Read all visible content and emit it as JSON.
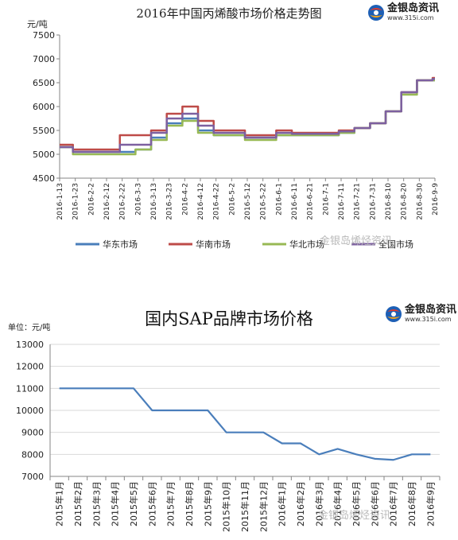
{
  "chart_data": [
    {
      "type": "line",
      "title": "2016年中国丙烯酸市场价格走势图",
      "ylabel": "元/吨",
      "ylim": [
        4500,
        7500
      ],
      "yticks": [
        4500,
        5000,
        5500,
        6000,
        6500,
        7000,
        7500
      ],
      "grid": false,
      "legend_position": "bottom",
      "x": [
        "2016-1-13",
        "2016-1-23",
        "2016-2-2",
        "2016-2-12",
        "2016-2-22",
        "2016-3-3",
        "2016-3-13",
        "2016-3-23",
        "2016-4-2",
        "2016-4-12",
        "2016-4-22",
        "2016-5-2",
        "2016-5-12",
        "2016-5-22",
        "2016-6-1",
        "2016-6-11",
        "2016-6-21",
        "2016-7-1",
        "2016-7-11",
        "2016-7-21",
        "2016-7-31",
        "2016-8-10",
        "2016-8-20",
        "2016-8-30",
        "2016-9-9"
      ],
      "series": [
        {
          "name": "华东市场",
          "color": "#4a7ebb",
          "values": [
            5150,
            5050,
            5050,
            5050,
            5050,
            5100,
            5350,
            5650,
            5750,
            5500,
            5400,
            5400,
            5350,
            5350,
            5400,
            5400,
            5400,
            5400,
            5450,
            5550,
            5650,
            5900,
            6300,
            6550,
            6550
          ]
        },
        {
          "name": "华南市场",
          "color": "#be4b48",
          "values": [
            5200,
            5100,
            5100,
            5100,
            5400,
            5400,
            5500,
            5850,
            6000,
            5700,
            5500,
            5500,
            5400,
            5400,
            5500,
            5450,
            5450,
            5450,
            5500,
            5550,
            5650,
            5900,
            6300,
            6550,
            6600
          ]
        },
        {
          "name": "华北市场",
          "color": "#98b954",
          "values": [
            5150,
            5000,
            5000,
            5000,
            5000,
            5100,
            5300,
            5600,
            5700,
            5450,
            5400,
            5400,
            5300,
            5300,
            5400,
            5400,
            5400,
            5400,
            5450,
            5550,
            5650,
            5900,
            6250,
            6550,
            6550
          ]
        },
        {
          "name": "全国市场",
          "color": "#7d60a0",
          "values": [
            5150,
            5050,
            5050,
            5050,
            5200,
            5200,
            5450,
            5750,
            5850,
            5600,
            5450,
            5450,
            5350,
            5350,
            5450,
            5430,
            5430,
            5430,
            5480,
            5550,
            5650,
            5900,
            6300,
            6550,
            6580
          ]
        }
      ]
    },
    {
      "type": "line",
      "title": "国内SAP品牌市场价格",
      "ylabel": "单位：元/吨",
      "ylim": [
        7000,
        13000
      ],
      "yticks": [
        7000,
        8000,
        9000,
        10000,
        11000,
        12000,
        13000
      ],
      "grid": true,
      "categories": [
        "2015年1月",
        "2015年2月",
        "2015年3月",
        "2015年4月",
        "2015年5月",
        "2015年6月",
        "2015年7月",
        "2015年8月",
        "2015年9月",
        "2015年10月",
        "2015年11月",
        "2015年12月",
        "2016年1月",
        "2016年2月",
        "2016年3月",
        "2016年4月",
        "2016年5月",
        "2016年6月",
        "2016年7月",
        "2016年8月",
        "2016年9月"
      ],
      "series": [
        {
          "color": "#4a7ebb",
          "values": [
            11000,
            11000,
            11000,
            11000,
            11000,
            10000,
            10000,
            10000,
            10000,
            9000,
            9000,
            9000,
            8500,
            8500,
            8000,
            8250,
            8000,
            7800,
            7750,
            8000,
            8000
          ]
        }
      ]
    }
  ],
  "logo": {
    "name": "金银岛资讯",
    "url": "www.315i.com"
  },
  "watermark1": "金银岛烯烃资讯",
  "watermark2": "金银岛烯烃资讯"
}
